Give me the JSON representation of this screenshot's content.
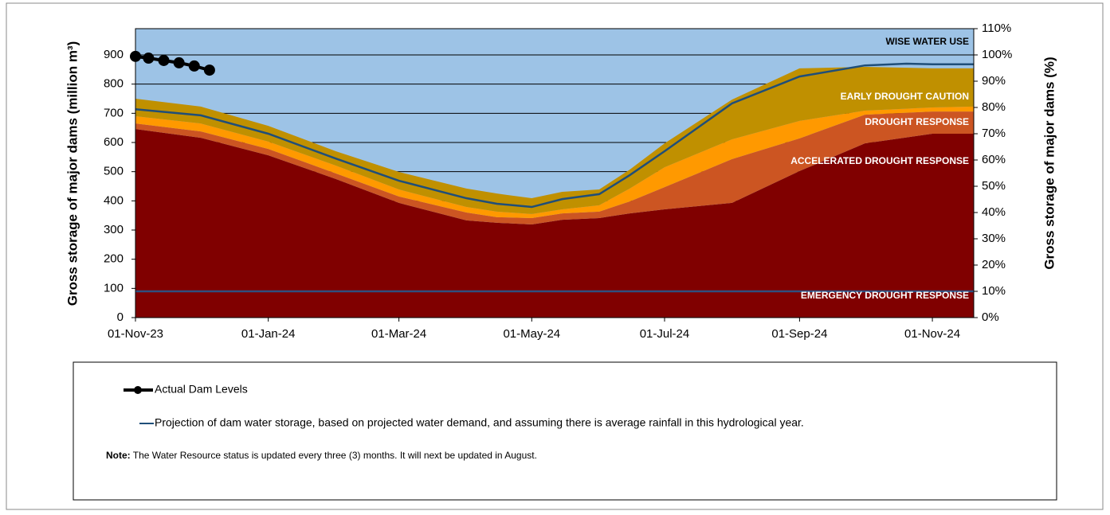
{
  "chart_data": {
    "type": "stacked-area",
    "y_label": "Gross storage of major dams (million m³)",
    "y2_label": "Gross storage of major dams (%)",
    "x": [
      "2023-11-01",
      "2023-12-01",
      "2024-01-01",
      "2024-02-01",
      "2024-03-01",
      "2024-04-01",
      "2024-04-15",
      "2024-05-01",
      "2024-05-15",
      "2024-06-01",
      "2024-06-15",
      "2024-07-01",
      "2024-08-01",
      "2024-09-01",
      "2024-10-01",
      "2024-11-01",
      "2024-11-20"
    ],
    "xlim": [
      "2023-11-01",
      "2024-11-20"
    ],
    "xticks": [
      {
        "value": "2023-11-01",
        "label": "01-Nov-23"
      },
      {
        "value": "2024-01-01",
        "label": "01-Jan-24"
      },
      {
        "value": "2024-03-01",
        "label": "01-Mar-24"
      },
      {
        "value": "2024-05-01",
        "label": "01-May-24"
      },
      {
        "value": "2024-07-01",
        "label": "01-Jul-24"
      },
      {
        "value": "2024-09-01",
        "label": "01-Sep-24"
      },
      {
        "value": "2024-11-01",
        "label": "01-Nov-24"
      }
    ],
    "ylim": [
      0,
      990
    ],
    "yticks": [
      0,
      100,
      200,
      300,
      400,
      500,
      600,
      700,
      800,
      900
    ],
    "y2lim": [
      0,
      110
    ],
    "y2ticks": [
      {
        "value": 0,
        "label": "0%"
      },
      {
        "value": 10,
        "label": "10%"
      },
      {
        "value": 20,
        "label": "20%"
      },
      {
        "value": 30,
        "label": "30%"
      },
      {
        "value": 40,
        "label": "40%"
      },
      {
        "value": 50,
        "label": "50%"
      },
      {
        "value": 60,
        "label": "60%"
      },
      {
        "value": 70,
        "label": "70%"
      },
      {
        "value": 80,
        "label": "80%"
      },
      {
        "value": 90,
        "label": "90%"
      },
      {
        "value": 100,
        "label": "100%"
      },
      {
        "value": 110,
        "label": "110%"
      }
    ],
    "grid": true,
    "plot_background": "#9dc3e6",
    "areas": [
      {
        "color": "#800000",
        "values": [
          646,
          616,
          556,
          475,
          393,
          333,
          325,
          319,
          335,
          341,
          357,
          371,
          393,
          502,
          597,
          630,
          630
        ]
      },
      {
        "color": "#cc5522",
        "values": [
          19,
          22,
          22,
          19,
          22,
          27,
          19,
          22,
          22,
          22,
          41,
          76,
          150,
          112,
          98,
          76,
          76
        ]
      },
      {
        "color": "#ff9900",
        "values": [
          25,
          27,
          25,
          27,
          24,
          19,
          19,
          14,
          14,
          22,
          44,
          68,
          68,
          60,
          14,
          14,
          17
        ]
      },
      {
        "color": "#c09000",
        "values": [
          60,
          58,
          54,
          49,
          60,
          63,
          62,
          54,
          60,
          54,
          65,
          82,
          136,
          180,
          150,
          134,
          131
        ]
      }
    ],
    "reference_line": {
      "value": 90,
      "color": "#2f4f7f"
    },
    "annotations": [
      "WISE WATER USE",
      "EARLY DROUGHT CAUTION",
      "DROUGHT RESPONSE",
      "ACCELERATED DROUGHT RESPONSE",
      "EMERGENCY DROUGHT RESPONSE"
    ],
    "series": [
      {
        "name": "Actual Dam Levels",
        "color": "#000000",
        "marker": true,
        "x": [
          "2023-11-01",
          "2023-11-07",
          "2023-11-14",
          "2023-11-21",
          "2023-11-28",
          "2023-12-05"
        ],
        "values": [
          895,
          889,
          881,
          873,
          862,
          848
        ]
      },
      {
        "name": "Projection of dam water storage, based on projected water demand, and assuming there is average rainfall in this hydrological year.",
        "color": "#1f4e79",
        "marker": false,
        "x": [
          "2023-11-01",
          "2023-12-01",
          "2024-01-01",
          "2024-02-01",
          "2024-03-01",
          "2024-04-01",
          "2024-04-15",
          "2024-05-01",
          "2024-05-15",
          "2024-06-01",
          "2024-06-15",
          "2024-07-01",
          "2024-08-01",
          "2024-09-01",
          "2024-10-01",
          "2024-10-20",
          "2024-11-01",
          "2024-11-20"
        ],
        "values": [
          714,
          693,
          630,
          545,
          469,
          409,
          390,
          379,
          406,
          423,
          488,
          570,
          734,
          826,
          864,
          870,
          868,
          868
        ]
      }
    ]
  },
  "note": {
    "label": "Note:",
    "text": "The Water Resource status is updated every three (3) months. It will next be updated in August."
  }
}
